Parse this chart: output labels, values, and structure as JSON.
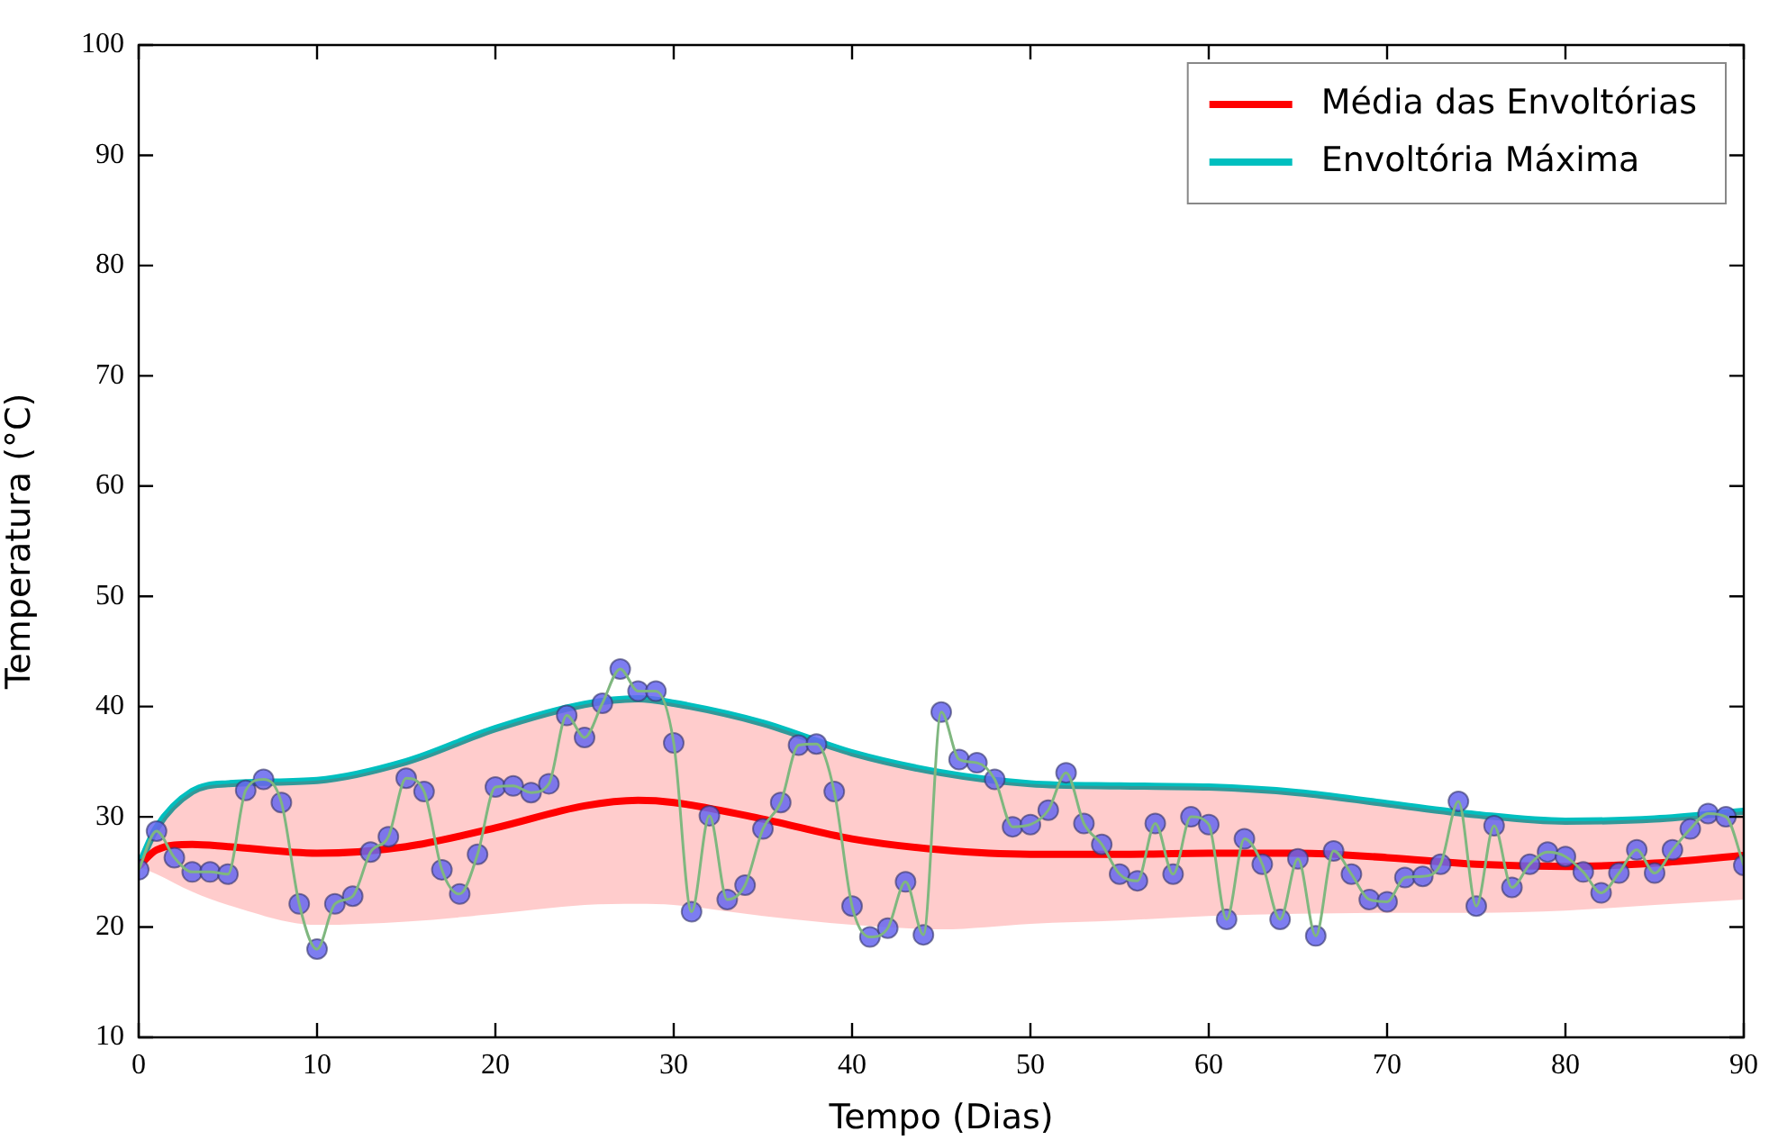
{
  "chart_data": {
    "type": "line",
    "xlabel": "Tempo (Dias)",
    "ylabel": "Temperatura (°C)",
    "xlim": [
      0,
      90
    ],
    "xticks": [
      0,
      10,
      20,
      30,
      40,
      50,
      60,
      70,
      80,
      90
    ],
    "ylim": [
      10,
      100
    ],
    "yticks": [
      10,
      20,
      30,
      40,
      50,
      60,
      70,
      80,
      90,
      100
    ],
    "legend": "top right",
    "x": [
      0,
      1,
      2,
      3,
      4,
      5,
      6,
      7,
      8,
      9,
      10,
      11,
      12,
      13,
      14,
      15,
      16,
      17,
      18,
      19,
      20,
      21,
      22,
      23,
      24,
      25,
      26,
      27,
      28,
      29,
      30,
      31,
      32,
      33,
      34,
      35,
      36,
      37,
      38,
      39,
      40,
      41,
      42,
      43,
      44,
      45,
      46,
      47,
      48,
      49,
      50,
      51,
      52,
      53,
      54,
      55,
      56,
      57,
      58,
      59,
      60,
      61,
      62,
      63,
      64,
      65,
      66,
      67,
      68,
      69,
      70,
      71,
      72,
      73,
      74,
      75,
      76,
      77,
      78,
      79,
      80,
      81,
      82,
      83,
      84,
      85,
      86,
      87,
      88,
      89,
      90
    ],
    "series": [
      {
        "type": "line",
        "color": "#7fb77f",
        "marker": "none",
        "values": [
          25.2,
          28.7,
          26.3,
          25.0,
          25.0,
          24.8,
          32.4,
          33.4,
          31.3,
          22.1,
          18.0,
          22.1,
          22.8,
          26.8,
          28.2,
          33.5,
          32.3,
          25.2,
          23.0,
          26.6,
          32.7,
          32.8,
          32.2,
          33.0,
          39.2,
          37.2,
          40.3,
          43.4,
          41.4,
          41.4,
          36.7,
          21.4,
          30.1,
          22.5,
          23.8,
          28.9,
          31.3,
          36.5,
          36.6,
          32.3,
          21.9,
          19.1,
          19.9,
          24.1,
          19.3,
          39.5,
          35.2,
          34.9,
          33.4,
          29.1,
          29.3,
          30.6,
          34.0,
          29.4,
          27.5,
          24.8,
          24.2,
          29.4,
          24.8,
          30.0,
          29.3,
          20.7,
          28.0,
          25.7,
          20.7,
          26.2,
          19.2,
          26.9,
          24.8,
          22.5,
          22.3,
          24.5,
          24.6,
          25.7,
          31.4,
          21.9,
          29.2,
          23.6,
          25.7,
          26.8,
          26.4,
          25.0,
          23.1,
          24.9,
          27.0,
          24.9,
          27.0,
          28.9,
          30.3,
          30.0,
          25.6
        ]
      },
      {
        "type": "scatter",
        "color": "#6666ee",
        "marker": "circle",
        "values": [
          25.2,
          28.7,
          26.3,
          25.0,
          25.0,
          24.8,
          32.4,
          33.4,
          31.3,
          22.1,
          18.0,
          22.1,
          22.8,
          26.8,
          28.2,
          33.5,
          32.3,
          25.2,
          23.0,
          26.6,
          32.7,
          32.8,
          32.2,
          33.0,
          39.2,
          37.2,
          40.3,
          43.4,
          41.4,
          41.4,
          36.7,
          21.4,
          30.1,
          22.5,
          23.8,
          28.9,
          31.3,
          36.5,
          36.6,
          32.3,
          21.9,
          19.1,
          19.9,
          24.1,
          19.3,
          39.5,
          35.2,
          34.9,
          33.4,
          29.1,
          29.3,
          30.6,
          34.0,
          29.4,
          27.5,
          24.8,
          24.2,
          29.4,
          24.8,
          30.0,
          29.3,
          20.7,
          28.0,
          25.7,
          20.7,
          26.2,
          19.2,
          26.9,
          24.8,
          22.5,
          22.3,
          24.5,
          24.6,
          25.7,
          31.4,
          21.9,
          29.2,
          23.6,
          25.7,
          26.8,
          26.4,
          25.0,
          23.1,
          24.9,
          27.0,
          24.9,
          27.0,
          28.9,
          30.3,
          30.0,
          25.6
        ]
      },
      {
        "type": "line",
        "name": "Média das Envoltórias",
        "color": "#ff0000",
        "marker": "none",
        "x": [
          0,
          1,
          3,
          5,
          10,
          15,
          20,
          25,
          28,
          30,
          35,
          40,
          45,
          50,
          55,
          60,
          65,
          70,
          75,
          80,
          85,
          90
        ],
        "values": [
          25.5,
          27.0,
          27.5,
          27.3,
          26.7,
          27.3,
          29.0,
          31.0,
          31.5,
          31.3,
          29.8,
          28.0,
          27.0,
          26.6,
          26.6,
          26.7,
          26.7,
          26.3,
          25.7,
          25.5,
          25.8,
          26.5
        ],
        "lower": [
          25.5,
          24.8,
          23.2,
          22.0,
          20.2,
          20.5,
          21.2,
          22.0,
          22.1,
          22.0,
          21.0,
          20.2,
          19.8,
          20.3,
          20.6,
          21.0,
          21.2,
          21.3,
          21.3,
          21.5,
          22.0,
          22.5
        ],
        "upper": [
          25.5,
          29.0,
          32.3,
          33.0,
          33.3,
          35.0,
          38.0,
          40.2,
          40.7,
          40.3,
          38.5,
          35.8,
          34.0,
          33.0,
          32.8,
          32.7,
          32.2,
          31.2,
          30.2,
          29.6,
          29.8,
          30.5
        ]
      },
      {
        "type": "line",
        "name": "Envoltória Máxima",
        "color": "#00bfbf",
        "marker": "none",
        "x": [
          0,
          1,
          3,
          5,
          10,
          15,
          20,
          25,
          28,
          30,
          35,
          40,
          45,
          50,
          55,
          60,
          65,
          70,
          75,
          80,
          85,
          90
        ],
        "values": [
          25.5,
          29.0,
          32.3,
          33.0,
          33.3,
          35.0,
          38.0,
          40.2,
          40.7,
          40.3,
          38.5,
          35.8,
          34.0,
          33.0,
          32.8,
          32.7,
          32.2,
          31.2,
          30.2,
          29.6,
          29.8,
          30.5
        ]
      }
    ]
  }
}
